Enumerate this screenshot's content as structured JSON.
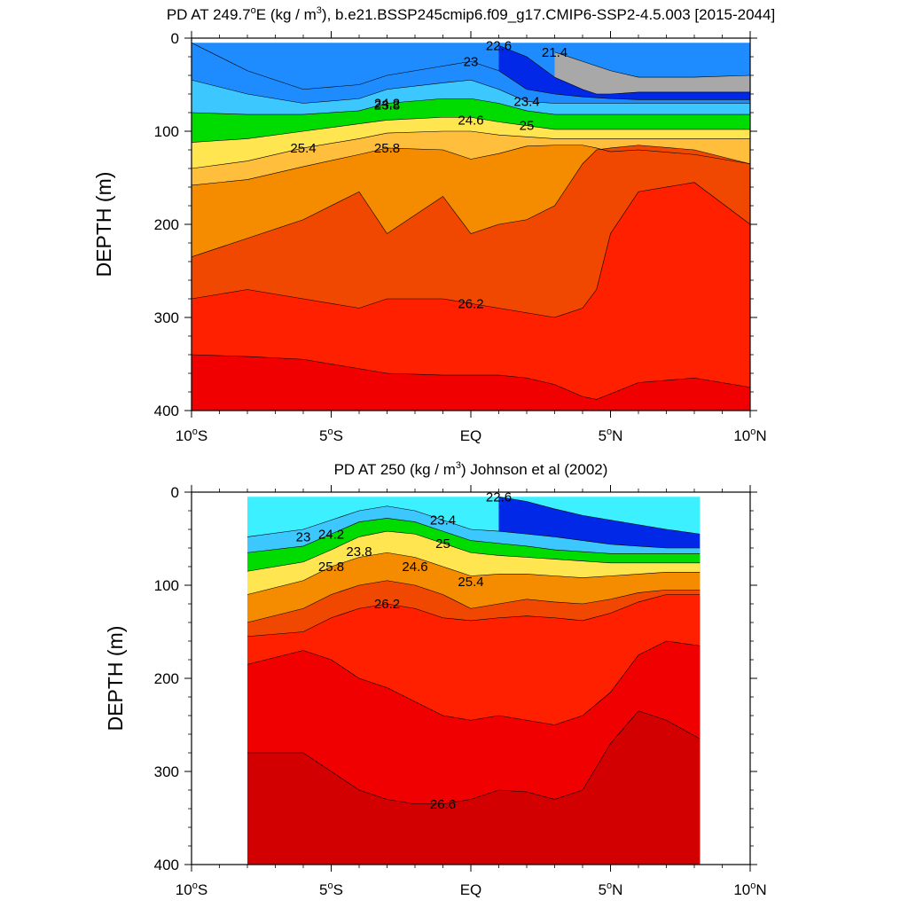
{
  "chart_data": [
    {
      "type": "contour",
      "title_main": "PD AT 249.7",
      "title_sup": "o",
      "title_mid": "E (kg / m",
      "title_sup2": "3",
      "title_tail": "), b.e21.BSSP245cmip6.f09_g17.CMIP6-SSP2-4.5.003 [2015-2044]",
      "ylabel": "DEPTH (m)",
      "x_ticks": [
        "10oS",
        "5oS",
        "EQ",
        "5oN",
        "10oN"
      ],
      "x_tick_values": [
        -10,
        -5,
        0,
        5,
        10
      ],
      "y_ticks": [
        "0",
        "100",
        "200",
        "300",
        "400"
      ],
      "y_tick_values": [
        0,
        100,
        200,
        300,
        400
      ],
      "xlim": [
        -10,
        10
      ],
      "ylim": [
        0,
        400
      ],
      "data_xlim": [
        -10,
        10
      ],
      "levels": [
        21.0,
        21.2,
        21.4,
        21.6,
        21.8,
        22.0,
        22.2,
        22.4,
        22.6,
        22.8,
        23.0,
        23.2,
        23.4,
        23.6,
        23.8,
        24.0,
        24.2,
        24.4,
        24.6,
        24.8,
        25.0,
        25.2,
        25.4,
        25.6,
        25.8,
        26.0,
        26.2,
        26.4,
        26.6
      ],
      "isopycnal_depths": {
        "x": [
          -10,
          -8,
          -6,
          -4,
          -3,
          -1,
          0,
          1,
          2,
          3,
          4,
          4.5,
          5,
          6,
          8,
          10
        ],
        "d21_4": [
          null,
          null,
          null,
          null,
          null,
          null,
          null,
          null,
          null,
          15,
          25,
          30,
          35,
          42,
          42,
          40
        ],
        "d22_6": [
          null,
          null,
          null,
          null,
          null,
          null,
          null,
          8,
          20,
          42,
          55,
          60,
          60,
          58,
          58,
          58
        ],
        "d23_0": [
          5,
          35,
          55,
          50,
          40,
          30,
          25,
          35,
          55,
          60,
          63,
          64,
          65,
          66,
          66,
          66
        ],
        "d23_4": [
          45,
          60,
          70,
          65,
          55,
          48,
          45,
          55,
          68,
          70,
          70,
          70,
          70,
          70,
          70,
          70
        ],
        "d24_2": [
          80,
          82,
          82,
          78,
          70,
          65,
          65,
          70,
          78,
          82,
          82,
          82,
          82,
          82,
          82,
          82
        ],
        "d25_0": [
          112,
          108,
          100,
          92,
          88,
          85,
          85,
          90,
          94,
          98,
          98,
          98,
          98,
          98,
          98,
          98
        ],
        "d25_4": [
          140,
          132,
          118,
          108,
          102,
          100,
          100,
          104,
          106,
          108,
          108,
          108,
          108,
          108,
          108,
          108
        ],
        "d25_8": [
          158,
          152,
          138,
          125,
          118,
          120,
          130,
          124,
          116,
          115,
          115,
          118,
          122,
          120,
          125,
          135
        ],
        "d26_0": [
          235,
          215,
          195,
          165,
          210,
          170,
          210,
          200,
          195,
          180,
          135,
          120,
          118,
          115,
          120,
          135
        ],
        "d26_2": [
          280,
          270,
          280,
          290,
          280,
          280,
          285,
          290,
          295,
          300,
          290,
          270,
          210,
          165,
          155,
          200
        ],
        "d26_4": [
          340,
          342,
          345,
          355,
          360,
          362,
          362,
          362,
          365,
          372,
          385,
          388,
          382,
          370,
          365,
          375
        ]
      },
      "contour_labels": [
        "21.4",
        "22.6",
        "23",
        "23.4",
        "23.8",
        "24.2",
        "24.6",
        "25",
        "25.4",
        "25.8",
        "26.2"
      ]
    },
    {
      "type": "contour",
      "title_main": "PD AT 250 (kg / m",
      "title_sup": "3",
      "title_tail": ") Johnson et al (2002)",
      "ylabel": "DEPTH (m)",
      "x_ticks": [
        "10oS",
        "5oS",
        "EQ",
        "5oN",
        "10oN"
      ],
      "x_tick_values": [
        -10,
        -5,
        0,
        5,
        10
      ],
      "y_ticks": [
        "0",
        "100",
        "200",
        "300",
        "400"
      ],
      "y_tick_values": [
        0,
        100,
        200,
        300,
        400
      ],
      "xlim": [
        -10,
        10
      ],
      "ylim": [
        0,
        400
      ],
      "data_xlim": [
        -8,
        8.2
      ],
      "levels": [
        21.6,
        21.8,
        22.0,
        22.2,
        22.4,
        22.6,
        22.8,
        23.0,
        23.2,
        23.4,
        23.6,
        23.8,
        24.0,
        24.2,
        24.4,
        24.6,
        24.8,
        25.0,
        25.2,
        25.4,
        25.6,
        25.8,
        26.0,
        26.2,
        26.4,
        26.6,
        26.8
      ],
      "isopycnal_depths": {
        "x": [
          -8,
          -6,
          -5,
          -4,
          -3,
          -2,
          -1,
          0,
          1,
          2,
          3,
          4,
          5,
          6,
          7,
          8.2
        ],
        "d22_6": [
          null,
          null,
          null,
          null,
          null,
          null,
          null,
          null,
          5,
          10,
          18,
          25,
          30,
          35,
          40,
          45
        ],
        "d23_4": [
          48,
          40,
          30,
          20,
          15,
          20,
          30,
          40,
          42,
          45,
          48,
          52,
          56,
          58,
          60,
          60
        ],
        "d24_2": [
          65,
          58,
          45,
          32,
          28,
          32,
          42,
          52,
          55,
          58,
          62,
          64,
          66,
          66,
          66,
          66
        ],
        "d25_0": [
          85,
          75,
          62,
          48,
          42,
          45,
          55,
          65,
          68,
          70,
          72,
          74,
          76,
          76,
          76,
          76
        ],
        "d25_8": [
          110,
          95,
          80,
          70,
          65,
          70,
          80,
          90,
          88,
          88,
          90,
          92,
          90,
          88,
          86,
          86
        ],
        "d26_0": [
          140,
          125,
          110,
          100,
          95,
          100,
          110,
          125,
          120,
          115,
          118,
          120,
          115,
          108,
          105,
          105
        ],
        "d26_2": [
          155,
          150,
          135,
          125,
          120,
          125,
          135,
          138,
          135,
          133,
          135,
          138,
          130,
          118,
          110,
          110
        ],
        "d26_4": [
          185,
          170,
          180,
          200,
          210,
          225,
          240,
          245,
          240,
          245,
          250,
          240,
          215,
          175,
          160,
          165
        ],
        "d26_6": [
          280,
          280,
          300,
          320,
          330,
          335,
          335,
          330,
          320,
          322,
          330,
          320,
          270,
          235,
          245,
          265
        ]
      },
      "contour_labels": [
        "22.6",
        "23",
        "23.4",
        "23.8",
        "24.2",
        "24.6",
        "25",
        "25.4",
        "25.8",
        "26.2",
        "26.6"
      ]
    }
  ]
}
